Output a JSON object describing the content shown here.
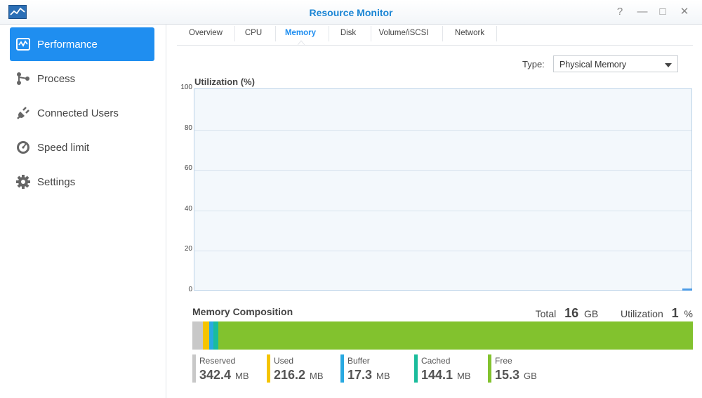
{
  "window": {
    "title": "Resource Monitor"
  },
  "sidebar": {
    "items": [
      {
        "label": "Performance",
        "icon": "performance-icon",
        "active": true
      },
      {
        "label": "Process",
        "icon": "process-icon",
        "active": false
      },
      {
        "label": "Connected Users",
        "icon": "plug-icon",
        "active": false
      },
      {
        "label": "Speed limit",
        "icon": "speedometer-icon",
        "active": false
      },
      {
        "label": "Settings",
        "icon": "gear-icon",
        "active": false
      }
    ]
  },
  "tabs": [
    {
      "label": "Overview",
      "active": false
    },
    {
      "label": "CPU",
      "active": false
    },
    {
      "label": "Memory",
      "active": true
    },
    {
      "label": "Disk",
      "active": false
    },
    {
      "label": "Volume/iSCSI",
      "active": false
    },
    {
      "label": "Network",
      "active": false
    }
  ],
  "type_selector": {
    "label": "Type:",
    "value": "Physical Memory"
  },
  "chart_data": {
    "type": "line",
    "title": "Utilization (%)",
    "ylim": [
      0,
      100
    ],
    "yticks": [
      "100",
      "80",
      "60",
      "40",
      "20",
      "0"
    ],
    "series": [
      {
        "values": [
          1
        ]
      }
    ],
    "grid": true
  },
  "memory": {
    "title": "Memory Composition",
    "total_label": "Total",
    "total_value": "16",
    "total_unit": "GB",
    "util_label": "Utilization",
    "util_value": "1",
    "util_unit": "%",
    "segments": [
      {
        "name": "Reserved",
        "value": "342.4",
        "unit": "MB",
        "color": "#c8c8c8",
        "mb": 342.4
      },
      {
        "name": "Used",
        "value": "216.2",
        "unit": "MB",
        "color": "#f5c400",
        "mb": 216.2
      },
      {
        "name": "Buffer",
        "value": "17.3",
        "unit": "MB",
        "color": "#29a9e1",
        "mb": 17.3
      },
      {
        "name": "Cached",
        "value": "144.1",
        "unit": "MB",
        "color": "#1abc9c",
        "mb": 144.1
      },
      {
        "name": "Free",
        "value": "15.3",
        "unit": "GB",
        "color": "#82c22e",
        "mb": 15667
      }
    ]
  },
  "colors": {
    "accent": "#1f8ef0",
    "title": "#1a85d4"
  }
}
